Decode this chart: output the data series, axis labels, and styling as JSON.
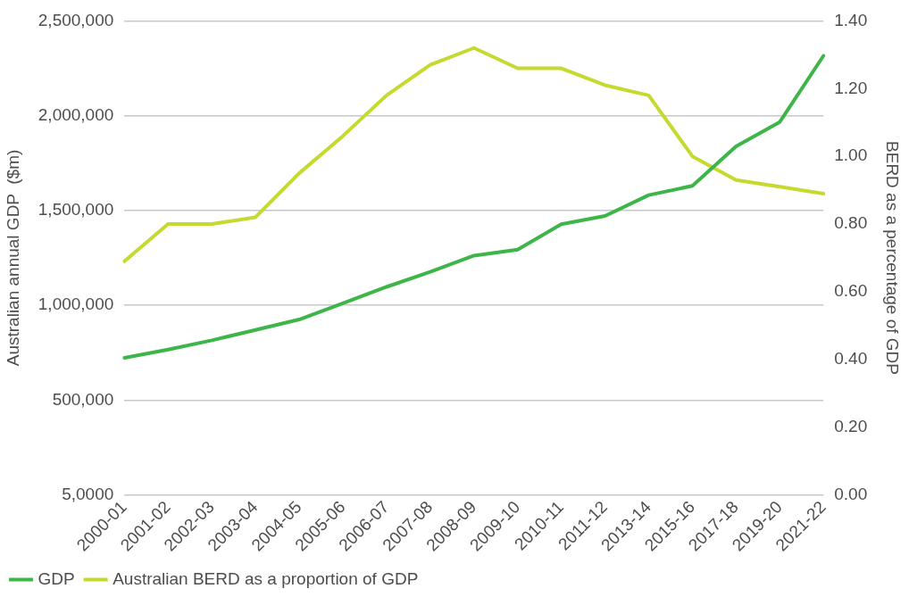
{
  "chart_data": {
    "type": "line",
    "categories": [
      "2000-01",
      "2001-02",
      "2002-03",
      "2003-04",
      "2004-05",
      "2005-06",
      "2006-07",
      "2007-08",
      "2008-09",
      "2009-10",
      "2010-11",
      "2011-12",
      "2013-14",
      "2015-16",
      "2017-18",
      "2019-20",
      "2021-22"
    ],
    "series": [
      {
        "name": "GDP",
        "color": "#3db549",
        "values": [
          723000,
          766000,
          815000,
          870000,
          925000,
          1011000,
          1097000,
          1176000,
          1262000,
          1293000,
          1428000,
          1471000,
          1581000,
          1630000,
          1838000,
          1967000,
          2316000
        ]
      },
      {
        "name": "Australian BERD as a proportion of GDP",
        "color": "#c5d92e",
        "axis": "y2",
        "values": [
          0.69,
          0.8,
          0.8,
          0.82,
          0.95,
          1.06,
          1.18,
          1.27,
          1.32,
          1.26,
          1.26,
          1.21,
          1.18,
          1.0,
          0.93,
          0.91,
          0.89
        ]
      }
    ],
    "ylabel": "Australian annual GDP  ($m)",
    "y2label": "BERD as a percentage of GDP",
    "ylim": [
      0,
      2500000
    ],
    "yticks": [
      {
        "value": 0,
        "label": "5,0000"
      },
      {
        "value": 500000,
        "label": "500,000"
      },
      {
        "value": 1000000,
        "label": "1,000,000"
      },
      {
        "value": 1500000,
        "label": "1,500,000"
      },
      {
        "value": 2000000,
        "label": "2,000,000"
      },
      {
        "value": 2500000,
        "label": "2,500,000"
      }
    ],
    "y2lim": [
      0,
      1.4
    ],
    "y2ticks": [
      {
        "value": 0,
        "label": "0.00"
      },
      {
        "value": 0.2,
        "label": "0.20"
      },
      {
        "value": 0.4,
        "label": "0.40"
      },
      {
        "value": 0.6,
        "label": "0.60"
      },
      {
        "value": 0.8,
        "label": "0.80"
      },
      {
        "value": 1.0,
        "label": "1.00"
      },
      {
        "value": 1.2,
        "label": "1.20"
      },
      {
        "value": 1.4,
        "label": "1.40"
      }
    ],
    "grid": "y",
    "legend": "bottom",
    "marker": "none",
    "line_style": "solid"
  }
}
